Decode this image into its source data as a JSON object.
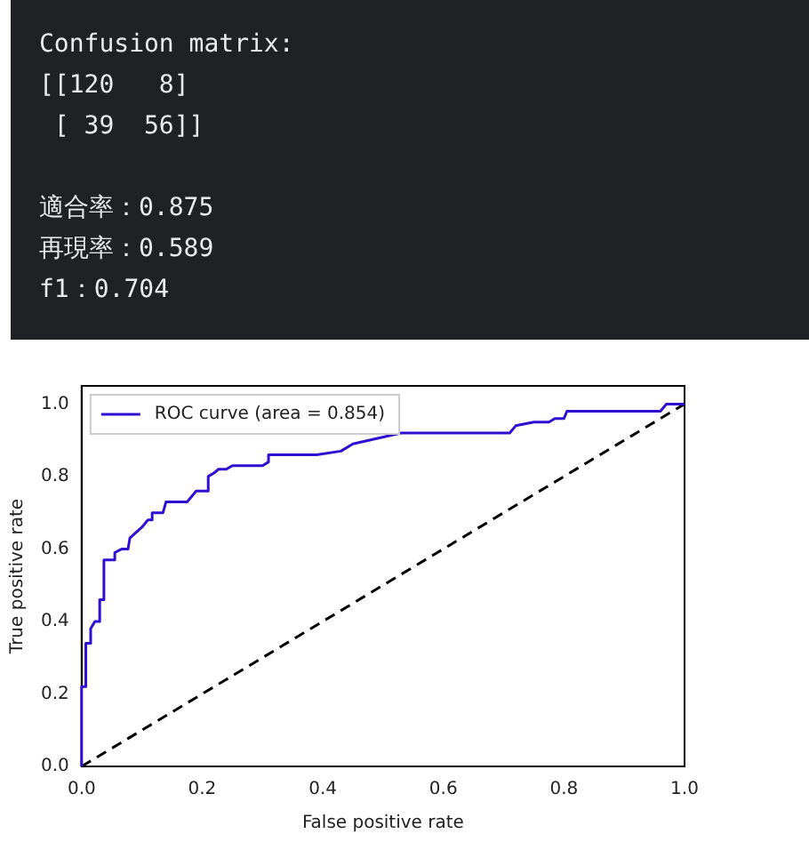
{
  "chart_data": {
    "type": "line",
    "annotations": [
      "Confusion matrix:",
      "[[120   8]",
      " [ 39  56]]",
      "適合率：0.875",
      "再現率：0.589",
      "f1：0.704"
    ],
    "xlabel": "False positive rate",
    "ylabel": "True positive rate",
    "xlim": [
      0,
      1
    ],
    "ylim": [
      0,
      1.05
    ],
    "xticks": [
      {
        "value": 0,
        "label": "0.0"
      },
      {
        "value": 0.2,
        "label": "0.2"
      },
      {
        "value": 0.4,
        "label": "0.4"
      },
      {
        "value": 0.6,
        "label": "0.6"
      },
      {
        "value": 0.8,
        "label": "0.8"
      },
      {
        "value": 1,
        "label": "1.0"
      }
    ],
    "yticks": [
      {
        "value": 0,
        "label": "0.0"
      },
      {
        "value": 0.2,
        "label": "0.2"
      },
      {
        "value": 0.4,
        "label": "0.4"
      },
      {
        "value": 0.6,
        "label": "0.6"
      },
      {
        "value": 0.8,
        "label": "0.8"
      },
      {
        "value": 1,
        "label": "1.0"
      }
    ],
    "legend": "top left",
    "marker": "none",
    "series": [
      {
        "name": "ROC curve (area = 0.854)",
        "color": "#2c0fd0",
        "line_style": "solid",
        "x": [
          0,
          0,
          0.007,
          0.007,
          0.015,
          0.015,
          0.022,
          0.03,
          0.03,
          0.037,
          0.037,
          0.055,
          0.055,
          0.067,
          0.077,
          0.08,
          0.1,
          0.11,
          0.117,
          0.117,
          0.135,
          0.14,
          0.175,
          0.19,
          0.21,
          0.21,
          0.22,
          0.227,
          0.24,
          0.25,
          0.3,
          0.31,
          0.31,
          0.39,
          0.43,
          0.45,
          0.53,
          0.62,
          0.71,
          0.72,
          0.75,
          0.775,
          0.785,
          0.8,
          0.805,
          0.96,
          0.97,
          1
        ],
        "values": [
          0,
          0.22,
          0.22,
          0.34,
          0.34,
          0.38,
          0.4,
          0.4,
          0.46,
          0.46,
          0.57,
          0.57,
          0.59,
          0.6,
          0.6,
          0.63,
          0.66,
          0.68,
          0.68,
          0.7,
          0.7,
          0.73,
          0.73,
          0.76,
          0.76,
          0.8,
          0.81,
          0.82,
          0.82,
          0.83,
          0.83,
          0.84,
          0.86,
          0.86,
          0.87,
          0.89,
          0.92,
          0.92,
          0.92,
          0.94,
          0.95,
          0.95,
          0.96,
          0.96,
          0.98,
          0.98,
          1,
          1
        ]
      },
      {
        "color": "#000000",
        "line_style": "dashed",
        "x": [
          0,
          1
        ],
        "values": [
          0,
          1
        ]
      }
    ]
  }
}
